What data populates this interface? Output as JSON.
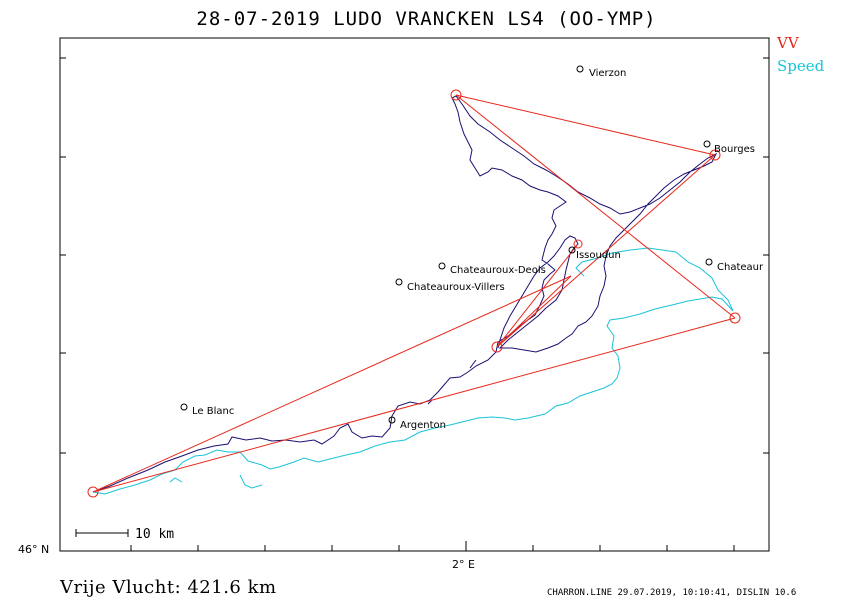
{
  "header": {
    "title": "28-07-2019   LUDO VRANCKEN   LS4 (OO-YMP)"
  },
  "legend": [
    {
      "label": "VV",
      "color": "#e8281c"
    },
    {
      "label": "Speed",
      "color": "#19c4d8"
    }
  ],
  "axes": {
    "lat_label": "46° N",
    "lon_label": "2° E"
  },
  "scale_bar": {
    "label": "10 km"
  },
  "cities": [
    {
      "name": "Vierzon"
    },
    {
      "name": "Bourges"
    },
    {
      "name": "Issoudun"
    },
    {
      "name": "Chateauroux-Deols"
    },
    {
      "name": "Chateauroux-Villers"
    },
    {
      "name": "Chateaur"
    },
    {
      "name": "Le Blanc"
    },
    {
      "name": "Argenton"
    }
  ],
  "footer": {
    "distance": "Vrije Vlucht:  421.6 km",
    "credit": "CHARRON.LINE 29.07.2019, 10:10:41, DISLIN 10.6"
  },
  "colors": {
    "frame": "#000000",
    "track": "#1c1070",
    "speed": "#19c4d8",
    "task": "#e8281c"
  }
}
